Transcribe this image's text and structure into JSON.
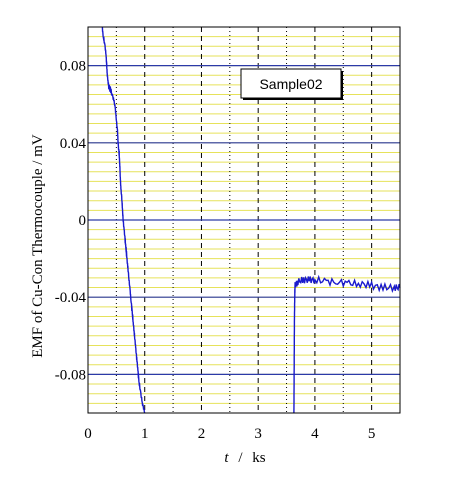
{
  "chart_data": {
    "type": "line",
    "xlabel_var": "t",
    "xlabel_sep": "/",
    "xlabel_unit": "ks",
    "ylabel": "EMF of Cu-Con Thermocouple / mV",
    "xlim": [
      0,
      5.5
    ],
    "ylim": [
      -0.1,
      0.1
    ],
    "xticks": [
      0,
      1,
      2,
      3,
      4,
      5
    ],
    "xtick_labels": [
      "0",
      "1",
      "2",
      "3",
      "4",
      "5"
    ],
    "yticks": [
      -0.08,
      -0.04,
      0,
      0.04,
      0.08
    ],
    "ytick_labels": [
      "-0.08",
      "-0.04",
      "0",
      "0.04",
      "0.08"
    ],
    "legend_label": "Sample02",
    "legend_placement": "top-right",
    "grid": {
      "minor_y_step": 0.005,
      "minor_y_color": "#e6e25a",
      "major_y_color": "#2c3aa8",
      "minor_x_step": 0.5,
      "major_x_color": "#000000"
    },
    "series": [
      {
        "color": "#1a1acc",
        "segments": [
          [
            [
              0.25,
              0.1
            ],
            [
              0.27,
              0.095
            ],
            [
              0.3,
              0.09
            ],
            [
              0.32,
              0.085
            ],
            [
              0.33,
              0.08
            ],
            [
              0.34,
              0.075
            ],
            [
              0.36,
              0.07
            ],
            [
              0.4,
              0.067
            ],
            [
              0.45,
              0.063
            ],
            [
              0.48,
              0.058
            ],
            [
              0.5,
              0.052
            ],
            [
              0.52,
              0.046
            ],
            [
              0.53,
              0.04
            ],
            [
              0.55,
              0.034
            ],
            [
              0.56,
              0.028
            ],
            [
              0.57,
              0.022
            ],
            [
              0.58,
              0.016
            ],
            [
              0.6,
              0.01
            ],
            [
              0.61,
              0.004
            ],
            [
              0.62,
              0.0
            ],
            [
              0.64,
              -0.006
            ],
            [
              0.66,
              -0.012
            ],
            [
              0.68,
              -0.018
            ],
            [
              0.7,
              -0.024
            ],
            [
              0.72,
              -0.03
            ],
            [
              0.74,
              -0.036
            ],
            [
              0.76,
              -0.042
            ],
            [
              0.78,
              -0.048
            ],
            [
              0.8,
              -0.054
            ],
            [
              0.82,
              -0.06
            ],
            [
              0.84,
              -0.066
            ],
            [
              0.86,
              -0.072
            ],
            [
              0.88,
              -0.078
            ],
            [
              0.9,
              -0.084
            ],
            [
              0.93,
              -0.09
            ],
            [
              0.96,
              -0.095
            ],
            [
              1.0,
              -0.1
            ]
          ],
          [
            [
              3.63,
              -0.1
            ],
            [
              3.635,
              -0.07
            ],
            [
              3.64,
              -0.05
            ],
            [
              3.645,
              -0.038
            ],
            [
              3.65,
              -0.034
            ],
            [
              3.7,
              -0.032
            ],
            [
              3.8,
              -0.031
            ],
            [
              3.9,
              -0.031
            ],
            [
              4.0,
              -0.031
            ],
            [
              4.2,
              -0.032
            ],
            [
              4.4,
              -0.032
            ],
            [
              4.6,
              -0.033
            ],
            [
              4.8,
              -0.033
            ],
            [
              5.0,
              -0.034
            ],
            [
              5.2,
              -0.035
            ],
            [
              5.4,
              -0.035
            ],
            [
              5.5,
              -0.035
            ]
          ]
        ]
      }
    ]
  }
}
